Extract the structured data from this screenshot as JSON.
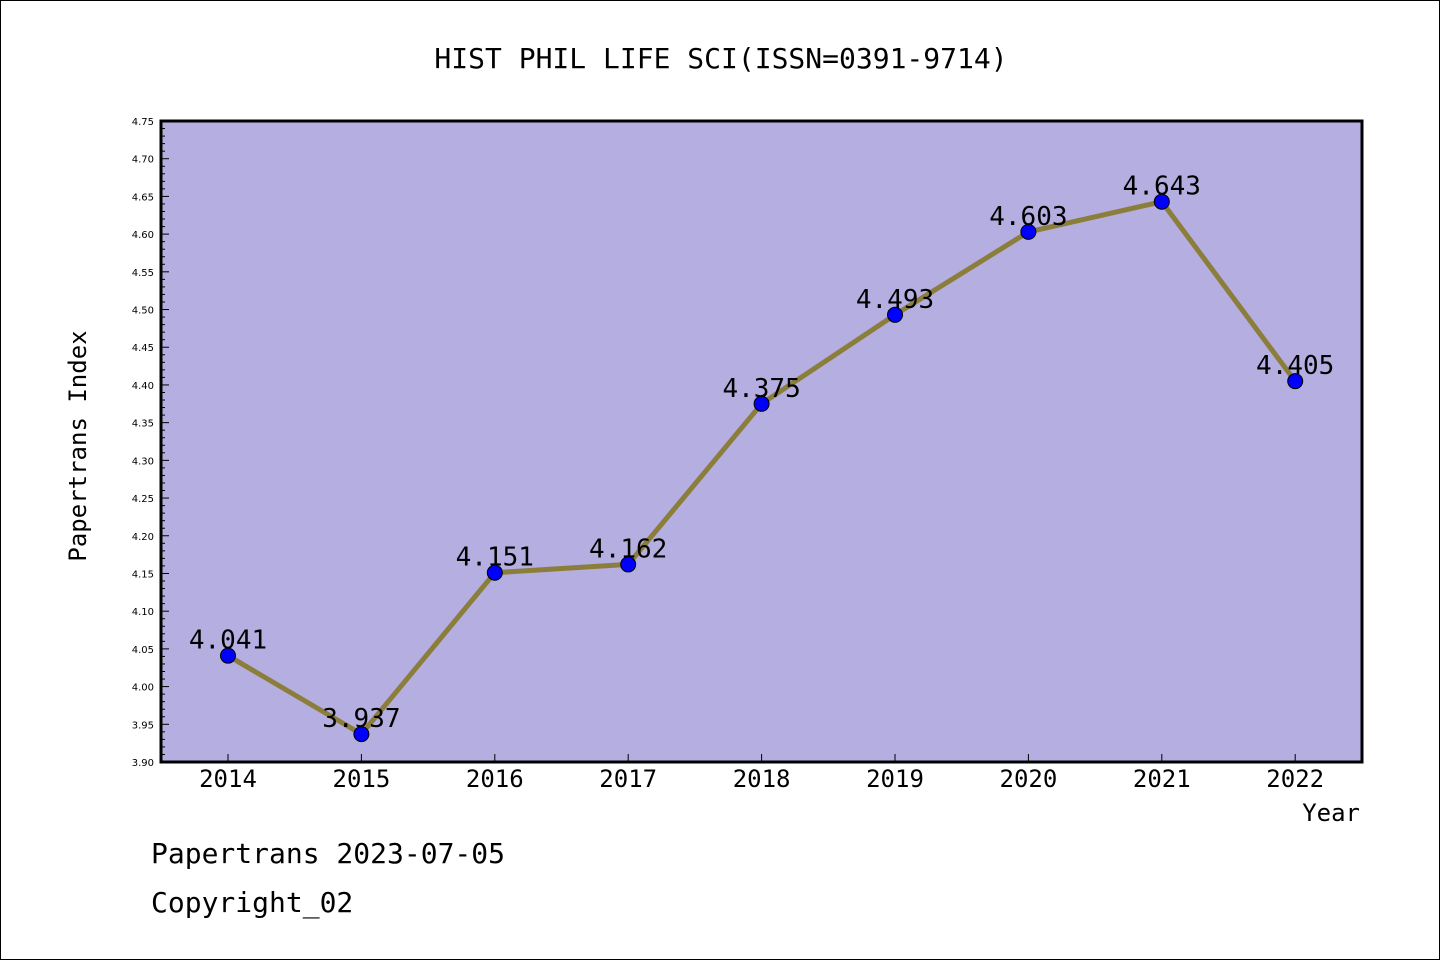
{
  "chart_data": {
    "type": "line",
    "title": "HIST PHIL LIFE SCI(ISSN=0391-9714)",
    "xlabel": "Year",
    "ylabel": "Papertrans Index",
    "categories": [
      "2014",
      "2015",
      "2016",
      "2017",
      "2018",
      "2019",
      "2020",
      "2021",
      "2022"
    ],
    "series": [
      {
        "values": [
          4.041,
          3.937,
          4.151,
          4.162,
          4.375,
          4.493,
          4.603,
          4.643,
          4.405
        ]
      }
    ],
    "data_labels": [
      "4.041",
      "3.937",
      "4.151",
      "4.162",
      "4.375",
      "4.493",
      "4.603",
      "4.643",
      "4.405"
    ],
    "ylim": [
      3.9,
      4.75
    ],
    "yticks": [
      "3.90",
      "3.95",
      "4.00",
      "4.05",
      "4.10",
      "4.15",
      "4.20",
      "4.25",
      "4.30",
      "4.35",
      "4.40",
      "4.45",
      "4.50",
      "4.55",
      "4.60",
      "4.65",
      "4.70",
      "4.75"
    ],
    "grid": false,
    "legend": "none",
    "colors": {
      "plot_background": "#b4aee1",
      "line": "#8b7d3a",
      "marker": "#0000ff"
    }
  },
  "footer": {
    "line1": "Papertrans 2023-07-05",
    "line2": "Copyright_02"
  }
}
